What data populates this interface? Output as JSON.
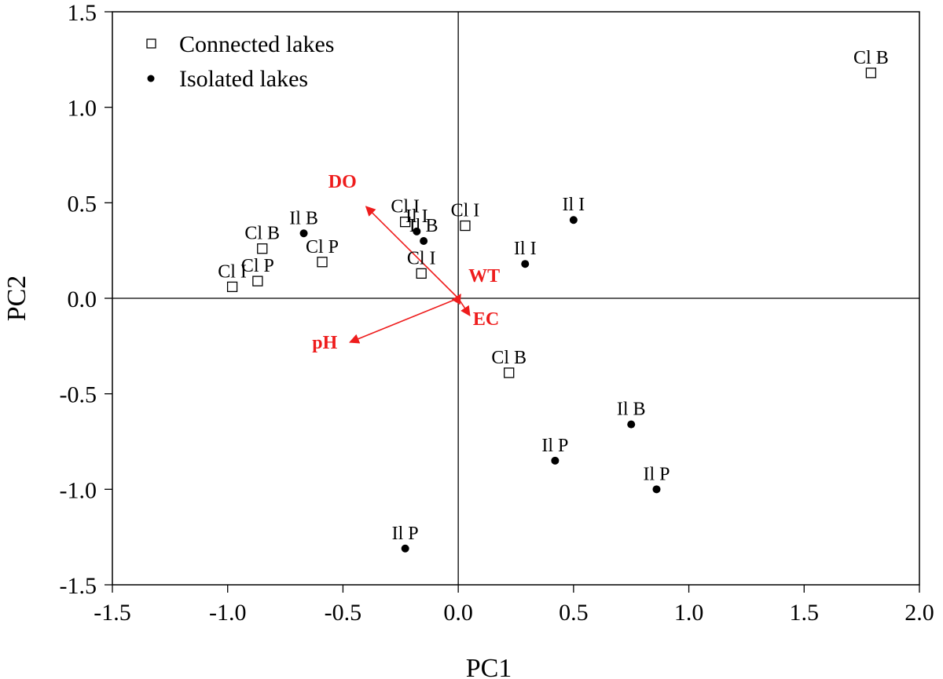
{
  "chart_data": {
    "type": "scatter",
    "xlabel": "PC1",
    "ylabel": "PC2",
    "xlim": [
      -1.5,
      2.0
    ],
    "ylim": [
      -1.5,
      1.5
    ],
    "x_ticks": [
      "-1.5",
      "-1.0",
      "-0.5",
      "0.0",
      "0.5",
      "1.0",
      "1.5",
      "2.0"
    ],
    "y_ticks": [
      "1.5",
      "1.0",
      "0.5",
      "0.0",
      "-0.5",
      "-1.0",
      "-1.5"
    ],
    "x_tick_values": [
      -1.5,
      -1.0,
      -0.5,
      0.0,
      0.5,
      1.0,
      1.5,
      2.0
    ],
    "y_tick_values": [
      1.5,
      1.0,
      0.5,
      0.0,
      -0.5,
      -1.0,
      -1.5
    ],
    "grid": false,
    "reference_lines": {
      "x": 0,
      "y": 0
    },
    "legend_position": "top-left",
    "series": [
      {
        "name": "Connected lakes",
        "marker": "open-square",
        "points": [
          {
            "label": "Cl B",
            "x": 1.79,
            "y": 1.18
          },
          {
            "label": "Cl I",
            "x": 0.03,
            "y": 0.38
          },
          {
            "label": "Cl I",
            "x": -0.23,
            "y": 0.4
          },
          {
            "label": "Cl I",
            "x": -0.16,
            "y": 0.13
          },
          {
            "label": "Cl P",
            "x": -0.59,
            "y": 0.19
          },
          {
            "label": "Cl B",
            "x": -0.85,
            "y": 0.26
          },
          {
            "label": "Cl P",
            "x": -0.87,
            "y": 0.09
          },
          {
            "label": "Cl I",
            "x": -0.98,
            "y": 0.06
          },
          {
            "label": "Cl B",
            "x": 0.22,
            "y": -0.39
          }
        ]
      },
      {
        "name": "Isolated lakes",
        "marker": "filled-circle",
        "points": [
          {
            "label": "Il I",
            "x": 0.5,
            "y": 0.41
          },
          {
            "label": "Il I",
            "x": 0.29,
            "y": 0.18
          },
          {
            "label": "Il I",
            "x": -0.18,
            "y": 0.35
          },
          {
            "label": "Il B",
            "x": -0.15,
            "y": 0.3
          },
          {
            "label": "Il B",
            "x": -0.67,
            "y": 0.34
          },
          {
            "label": "Il B",
            "x": 0.75,
            "y": -0.66
          },
          {
            "label": "Il P",
            "x": 0.42,
            "y": -0.85
          },
          {
            "label": "Il P",
            "x": 0.86,
            "y": -1.0
          },
          {
            "label": "Il P",
            "x": -0.23,
            "y": -1.31
          }
        ]
      }
    ],
    "vectors": {
      "color": "#ee1c1c",
      "items": [
        {
          "label": "DO",
          "x": -0.4,
          "y": 0.48
        },
        {
          "label": "pH",
          "x": -0.47,
          "y": -0.23
        },
        {
          "label": "WT",
          "x": 0.01,
          "y": 0.02
        },
        {
          "label": "EC",
          "x": 0.05,
          "y": -0.09
        }
      ]
    }
  }
}
